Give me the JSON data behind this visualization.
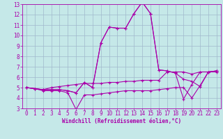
{
  "xlabel": "Windchill (Refroidissement éolien,°C)",
  "xlim": [
    -0.5,
    23.5
  ],
  "ylim": [
    3,
    13
  ],
  "xticks": [
    0,
    1,
    2,
    3,
    4,
    5,
    6,
    7,
    8,
    9,
    10,
    11,
    12,
    13,
    14,
    15,
    16,
    17,
    18,
    19,
    20,
    21,
    22,
    23
  ],
  "yticks": [
    3,
    4,
    5,
    6,
    7,
    8,
    9,
    10,
    11,
    12,
    13
  ],
  "bg_color": "#c5e8e8",
  "grid_color": "#a0b8cc",
  "line_color": "#aa00aa",
  "line1_x": [
    0,
    1,
    2,
    3,
    4,
    5,
    6,
    7,
    8,
    9,
    10,
    11,
    12,
    13,
    14,
    15,
    16,
    17,
    18,
    19,
    20,
    21,
    22,
    23
  ],
  "line1_y": [
    5.0,
    4.9,
    4.7,
    4.7,
    4.7,
    4.5,
    2.9,
    4.3,
    4.3,
    4.4,
    4.5,
    4.6,
    4.7,
    4.7,
    4.7,
    4.7,
    4.8,
    4.9,
    5.0,
    5.0,
    4.0,
    5.2,
    6.5,
    6.5
  ],
  "line2_x": [
    0,
    1,
    2,
    3,
    4,
    5,
    6,
    7,
    8,
    9,
    10,
    11,
    12,
    13,
    14,
    15,
    16,
    17,
    18,
    19,
    20,
    21,
    22,
    23
  ],
  "line2_y": [
    5.0,
    4.9,
    4.8,
    4.8,
    4.8,
    4.7,
    4.5,
    5.5,
    5.0,
    9.3,
    10.8,
    10.7,
    10.7,
    12.1,
    13.2,
    12.1,
    6.7,
    6.6,
    6.4,
    5.8,
    5.6,
    5.1,
    6.5,
    6.6
  ],
  "line3_x": [
    0,
    1,
    2,
    3,
    4,
    5,
    6,
    7,
    8,
    9,
    10,
    11,
    12,
    13,
    14,
    15,
    16,
    17,
    18,
    19,
    20,
    21,
    22,
    23
  ],
  "line3_y": [
    5.0,
    4.9,
    4.8,
    4.8,
    4.8,
    4.7,
    4.5,
    5.5,
    5.0,
    9.3,
    10.8,
    10.7,
    10.7,
    12.1,
    13.2,
    12.1,
    6.7,
    6.6,
    6.4,
    3.9,
    5.3,
    6.5,
    6.5,
    6.6
  ],
  "line4_x": [
    0,
    1,
    2,
    3,
    4,
    5,
    6,
    7,
    8,
    9,
    10,
    11,
    12,
    13,
    14,
    15,
    16,
    17,
    18,
    19,
    20,
    21,
    22,
    23
  ],
  "line4_y": [
    5.0,
    4.9,
    4.8,
    5.0,
    5.1,
    5.2,
    5.3,
    5.4,
    5.4,
    5.4,
    5.5,
    5.5,
    5.6,
    5.6,
    5.7,
    5.7,
    5.7,
    6.5,
    6.5,
    6.5,
    6.3,
    6.5,
    6.5,
    6.6
  ],
  "tick_fontsize": 5.5,
  "xlabel_fontsize": 5.5
}
